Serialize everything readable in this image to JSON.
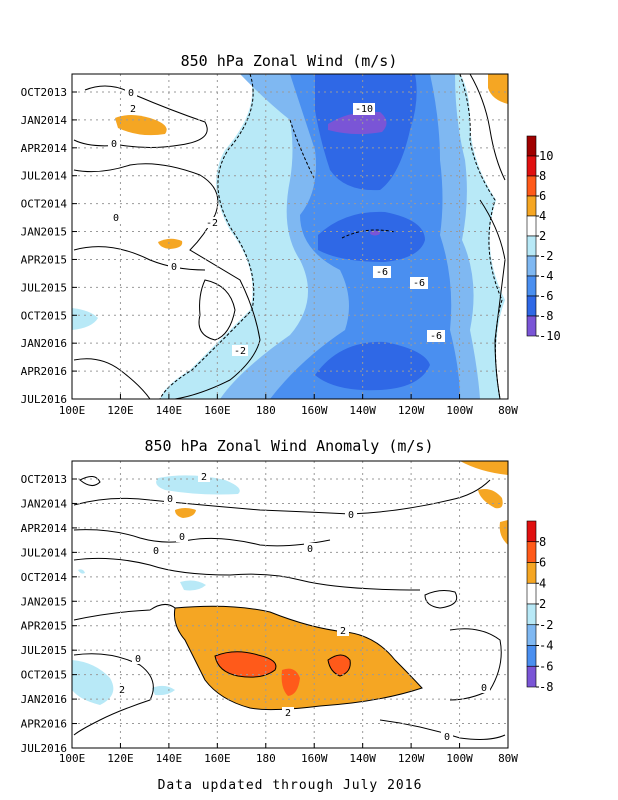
{
  "footer": "Data updated through July 2016",
  "chart_data": [
    {
      "type": "heatmap",
      "title": "850 hPa Zonal Wind (m/s)",
      "x_ticks": [
        "100E",
        "120E",
        "140E",
        "160E",
        "180",
        "160W",
        "140W",
        "120W",
        "100W",
        "80W"
      ],
      "y_ticks": [
        "OCT2013",
        "JAN2014",
        "APR2014",
        "JUL2014",
        "OCT2014",
        "JAN2015",
        "APR2015",
        "JUL2015",
        "OCT2015",
        "JAN2016",
        "APR2016",
        "JUL2016"
      ],
      "colorbar": {
        "labels": [
          "10",
          "8",
          "6",
          "4",
          "2",
          "-2",
          "-4",
          "-6",
          "-8",
          "-10"
        ],
        "colors": [
          "#a00000",
          "#e01010",
          "#ff5a1a",
          "#f5a623",
          "#ffffff",
          "#b8e9f7",
          "#7fb8f2",
          "#4a8ff0",
          "#2f68e6",
          "#7a55d6"
        ]
      },
      "contour_labels": [
        "0",
        "2",
        "0",
        "-2",
        "0",
        "-2",
        "0",
        "-10",
        "-6",
        "-6",
        "-6"
      ]
    },
    {
      "type": "heatmap",
      "title": "850 hPa Zonal Wind Anomaly (m/s)",
      "x_ticks": [
        "100E",
        "120E",
        "140E",
        "160E",
        "180",
        "160W",
        "140W",
        "120W",
        "100W",
        "80W"
      ],
      "y_ticks": [
        "OCT2013",
        "JAN2014",
        "APR2014",
        "JUL2014",
        "OCT2014",
        "JAN2015",
        "APR2015",
        "JUL2015",
        "OCT2015",
        "JAN2016",
        "APR2016",
        "JUL2016"
      ],
      "colorbar": {
        "labels": [
          "8",
          "6",
          "4",
          "2",
          "-2",
          "-4",
          "-6",
          "-8"
        ],
        "colors": [
          "#e01010",
          "#ff5a1a",
          "#f5a623",
          "#ffffff",
          "#b8e9f7",
          "#7fb8f2",
          "#4a8ff0",
          "#7a55d6"
        ]
      },
      "contour_labels": [
        "2",
        "0",
        "0",
        "0",
        "0",
        "2",
        "2",
        "0",
        "2",
        "0",
        "0",
        "0"
      ]
    }
  ]
}
